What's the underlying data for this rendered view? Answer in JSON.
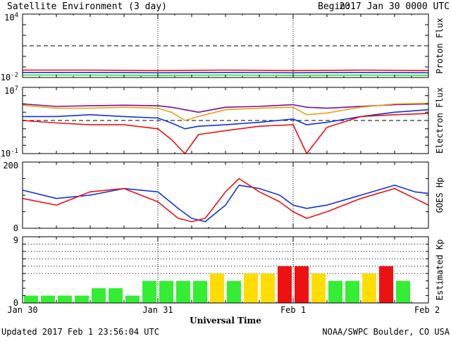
{
  "header": {
    "title": "Satellite Environment (3 day)",
    "begin_label": "Begin:",
    "begin_value": "2017 Jan 30 0000 UTC"
  },
  "footer": {
    "updated": "Updated 2017 Feb  1 23:56:04 UTC",
    "credit": "NOAA/SWPC Boulder, CO USA"
  },
  "x_axis": {
    "label": "Universal Time",
    "ticks": [
      "Jan 30",
      "Jan 31",
      "Feb 1",
      "Feb 2"
    ],
    "range_days": [
      0,
      3
    ]
  },
  "colors": {
    "red": "#ee1111",
    "blue": "#1133dd",
    "green": "#22dd22",
    "purple": "#7a0f9a",
    "orange": "#f0a010",
    "kp_green": "#33ee33",
    "kp_yellow": "#ffdd00",
    "kp_red": "#ee1111"
  },
  "chart_data": [
    {
      "type": "line",
      "ylabel": "Proton Flux",
      "yscale": "log",
      "ylim": [
        0.01,
        10000
      ],
      "ytick_labels": [
        {
          "base": "10",
          "exp": "4"
        },
        {
          "base": "10",
          "exp": "-2"
        }
      ],
      "threshold": 10,
      "x": [
        0,
        0.5,
        1,
        1.5,
        2,
        2.5,
        3
      ],
      "series": [
        {
          "color": "red",
          "values": [
            0.05,
            0.05,
            0.045,
            0.05,
            0.045,
            0.05,
            0.045
          ]
        },
        {
          "color": "blue",
          "values": [
            0.03,
            0.03,
            0.028,
            0.03,
            0.028,
            0.03,
            0.028
          ]
        },
        {
          "color": "green",
          "values": [
            0.017,
            0.017,
            0.016,
            0.017,
            0.016,
            0.017,
            0.016
          ]
        }
      ]
    },
    {
      "type": "line",
      "ylabel": "Electron Flux",
      "yscale": "log",
      "ylim": [
        0.1,
        10000000
      ],
      "ytick_labels": [
        {
          "base": "10",
          "exp": "7"
        },
        {
          "base": "10",
          "exp": "-1"
        }
      ],
      "threshold": 1000,
      "x": [
        0,
        0.25,
        0.5,
        0.75,
        1,
        1.1,
        1.2,
        1.3,
        1.5,
        1.75,
        2,
        2.1,
        2.25,
        2.5,
        2.75,
        3
      ],
      "series": [
        {
          "color": "purple",
          "values": [
            100000,
            50000,
            60000,
            70000,
            60000,
            40000,
            20000,
            10000,
            40000,
            50000,
            80000,
            40000,
            30000,
            50000,
            80000,
            100000
          ]
        },
        {
          "color": "orange",
          "values": [
            70000,
            30000,
            30000,
            40000,
            30000,
            10000,
            1000,
            3000,
            20000,
            30000,
            40000,
            5000,
            8000,
            40000,
            100000,
            120000
          ]
        },
        {
          "color": "blue",
          "values": [
            3000,
            3000,
            5000,
            3000,
            2000,
            500,
            100,
            200,
            300,
            600,
            1500,
            300,
            600,
            3000,
            10000,
            20000
          ]
        },
        {
          "color": "red",
          "values": [
            1000,
            500,
            300,
            300,
            100,
            5,
            0.1,
            20,
            60,
            200,
            300,
            0.1,
            150,
            3000,
            5000,
            7000
          ]
        }
      ]
    },
    {
      "type": "line",
      "ylabel": "GOES Hp",
      "yscale": "linear",
      "ylim": [
        0,
        200
      ],
      "ytick_labels": [
        "200",
        "0"
      ],
      "x": [
        0,
        0.25,
        0.5,
        0.75,
        1,
        1.15,
        1.25,
        1.35,
        1.5,
        1.6,
        1.75,
        1.9,
        2,
        2.1,
        2.25,
        2.5,
        2.75,
        2.9,
        3
      ],
      "series": [
        {
          "color": "blue",
          "values": [
            115,
            90,
            100,
            120,
            110,
            60,
            30,
            20,
            70,
            130,
            120,
            100,
            70,
            60,
            70,
            100,
            130,
            110,
            105
          ]
        },
        {
          "color": "red",
          "values": [
            90,
            70,
            110,
            120,
            80,
            30,
            20,
            30,
            110,
            150,
            110,
            80,
            50,
            30,
            50,
            90,
            120,
            90,
            70
          ]
        }
      ]
    },
    {
      "type": "bar",
      "ylabel": "Estimated Kp",
      "ylim": [
        0,
        9
      ],
      "ytick_labels": [
        "9",
        "0"
      ],
      "gridlines": [
        4,
        5,
        6,
        7,
        8,
        9
      ],
      "values": [
        1,
        1,
        1,
        1,
        2,
        2,
        1,
        3,
        3,
        3,
        3,
        4,
        3,
        4,
        4,
        5,
        5,
        4,
        3,
        3,
        4,
        5,
        3
      ],
      "bar_colors": [
        "kp_green",
        "kp_green",
        "kp_green",
        "kp_green",
        "kp_green",
        "kp_green",
        "kp_green",
        "kp_green",
        "kp_green",
        "kp_green",
        "kp_green",
        "kp_yellow",
        "kp_green",
        "kp_yellow",
        "kp_yellow",
        "kp_red",
        "kp_red",
        "kp_yellow",
        "kp_green",
        "kp_green",
        "kp_yellow",
        "kp_red",
        "kp_green"
      ]
    }
  ]
}
